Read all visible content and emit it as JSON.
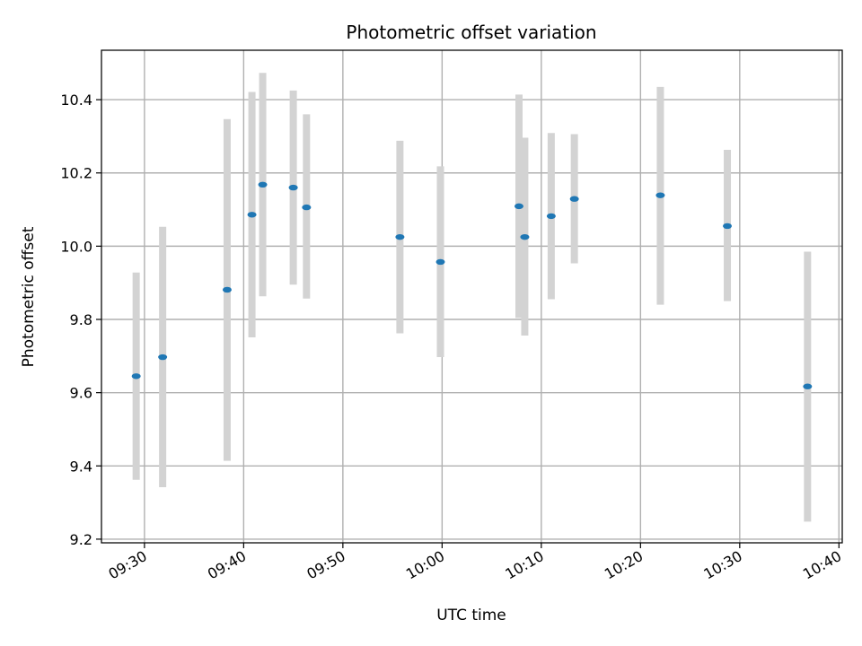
{
  "chart_data": {
    "type": "scatter",
    "title": "Photometric offset variation",
    "xlabel": "UTC time",
    "ylabel": "Photometric offset",
    "grid": true,
    "legend": "none",
    "x_tick_labels": [
      "09:30",
      "09:40",
      "09:50",
      "10:00",
      "10:10",
      "10:20",
      "10:30",
      "10:40"
    ],
    "y_tick_labels": [
      "9.2",
      "9.4",
      "9.6",
      "9.8",
      "10.0",
      "10.2",
      "10.4"
    ],
    "xlim": [
      "09:25:40",
      "10:40:20"
    ],
    "ylim": [
      9.19,
      10.535
    ],
    "colors": {
      "point": "#1f77b4",
      "errorbar": "#d3d3d3",
      "grid": "#b0b0b0"
    },
    "points": [
      {
        "x": "09:29:10",
        "y": 9.645,
        "yerr": [
          9.362,
          9.928
        ]
      },
      {
        "x": "09:31:50",
        "y": 9.697,
        "yerr": [
          9.342,
          10.053
        ]
      },
      {
        "x": "09:38:20",
        "y": 9.881,
        "yerr": [
          9.414,
          10.347
        ]
      },
      {
        "x": "09:40:50",
        "y": 10.086,
        "yerr": [
          9.751,
          10.421
        ]
      },
      {
        "x": "09:41:55",
        "y": 10.168,
        "yerr": [
          9.863,
          10.473
        ]
      },
      {
        "x": "09:45:00",
        "y": 10.16,
        "yerr": [
          9.895,
          10.425
        ]
      },
      {
        "x": "09:46:20",
        "y": 10.106,
        "yerr": [
          9.857,
          10.36
        ]
      },
      {
        "x": "09:55:45",
        "y": 10.025,
        "yerr": [
          9.762,
          10.288
        ]
      },
      {
        "x": "09:59:50",
        "y": 9.957,
        "yerr": [
          9.697,
          10.218
        ]
      },
      {
        "x": "10:07:45",
        "y": 10.109,
        "yerr": [
          9.804,
          10.414
        ]
      },
      {
        "x": "10:08:20",
        "y": 10.025,
        "yerr": [
          9.756,
          10.296
        ]
      },
      {
        "x": "10:11:00",
        "y": 10.082,
        "yerr": [
          9.855,
          10.309
        ]
      },
      {
        "x": "10:13:20",
        "y": 10.129,
        "yerr": [
          9.953,
          10.306
        ]
      },
      {
        "x": "10:22:00",
        "y": 10.139,
        "yerr": [
          9.84,
          10.435
        ]
      },
      {
        "x": "10:28:45",
        "y": 10.055,
        "yerr": [
          9.85,
          10.263
        ]
      },
      {
        "x": "10:36:50",
        "y": 9.617,
        "yerr": [
          9.248,
          9.985
        ]
      }
    ]
  }
}
